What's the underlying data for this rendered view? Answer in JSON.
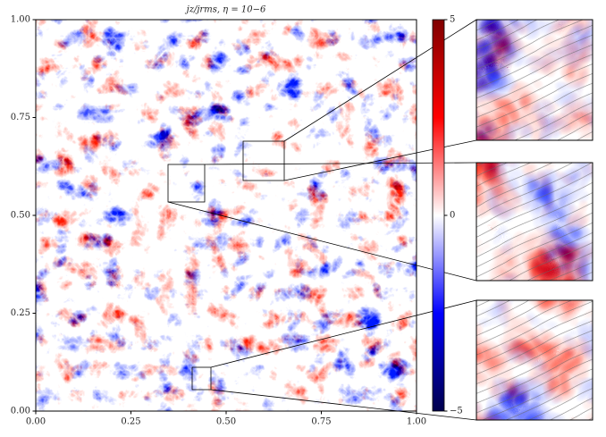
{
  "chart_data": {
    "type": "heatmap",
    "title": "jz/jrms, η = 10−6",
    "xlim": [
      0,
      1
    ],
    "ylim": [
      0,
      1
    ],
    "xticks": [
      {
        "value": 0,
        "label": "0.00"
      },
      {
        "value": 0.25,
        "label": "0.25"
      },
      {
        "value": 0.5,
        "label": "0.50"
      },
      {
        "value": 0.75,
        "label": "0.75"
      },
      {
        "value": 1,
        "label": "1.00"
      }
    ],
    "yticks": [
      {
        "value": 0,
        "label": "0.00"
      },
      {
        "value": 0.25,
        "label": "0.25"
      },
      {
        "value": 0.5,
        "label": "0.50"
      },
      {
        "value": 0.75,
        "label": "0.75"
      },
      {
        "value": 1,
        "label": "1.00"
      }
    ],
    "colorbar": {
      "clim": [
        -5,
        5
      ],
      "ticks": [
        {
          "value": -5,
          "label": "−5"
        },
        0,
        5
      ],
      "colors": [
        "#00004c",
        "#0000ff",
        "#ffffff",
        "#ff0000",
        "#800000"
      ]
    }
  }
}
